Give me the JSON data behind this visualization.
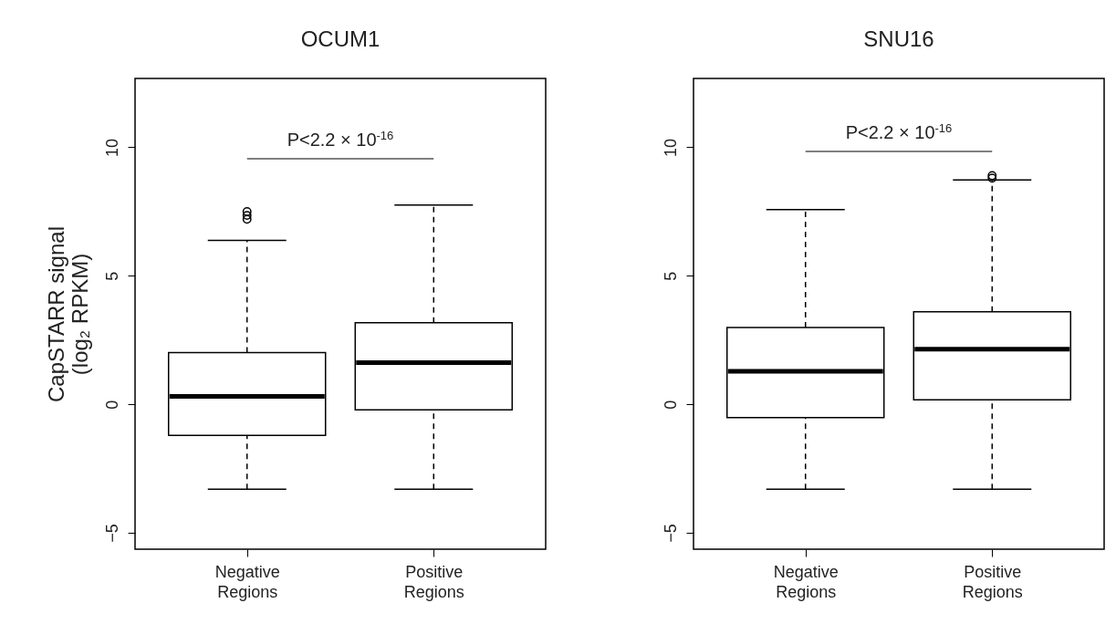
{
  "chart_data": [
    {
      "type": "box",
      "title": "OCUM1",
      "ylabel": "CapSTARR signal\n(log₂ RPKM)",
      "categories": [
        "Negative\nRegions",
        "Positive\nRegions"
      ],
      "boxes": [
        {
          "low": -3.31,
          "q1": -1.21,
          "median": 0.31,
          "q3": 2.01,
          "high": 6.38,
          "outliers": [
            7.2,
            7.35,
            7.5
          ]
        },
        {
          "low": -3.31,
          "q1": -0.22,
          "median": 1.62,
          "q3": 3.17,
          "high": 7.75
        }
      ],
      "ylim": [
        -5.64,
        12.68
      ],
      "yticks": [
        -5,
        0,
        5,
        10
      ],
      "annotations": [
        "P<2.2 × 10$^{-16}$"
      ]
    },
    {
      "type": "box",
      "title": "SNU16",
      "categories": [
        "Negative\nRegions",
        "Positive\nRegions"
      ],
      "boxes": [
        {
          "low": -3.31,
          "q1": -0.52,
          "median": 1.28,
          "q3": 2.99,
          "high": 7.58
        },
        {
          "low": -3.31,
          "q1": 0.17,
          "median": 2.14,
          "q3": 3.6,
          "high": 8.73,
          "outliers": [
            8.8,
            8.9
          ]
        }
      ],
      "ylim": [
        -5.64,
        12.68
      ],
      "yticks": [
        -5,
        0,
        5,
        10
      ],
      "annotations": [
        "P<2.2 × 10$^{-16}$"
      ]
    }
  ]
}
